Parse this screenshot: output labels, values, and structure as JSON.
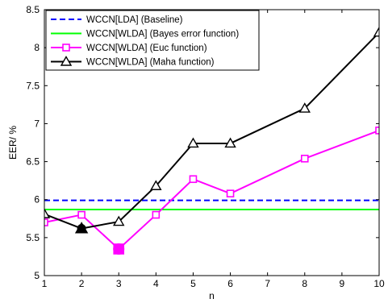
{
  "chart_data": {
    "type": "line",
    "title": "",
    "xlabel": "n",
    "ylabel": "EER/ %",
    "xlim": [
      1,
      10
    ],
    "ylim": [
      5,
      8.5
    ],
    "xticks": [
      "1",
      "2",
      "3",
      "4",
      "5",
      "6",
      "7",
      "8",
      "9",
      "10"
    ],
    "yticks": [
      "5",
      "5.5",
      "6",
      "6.5",
      "7",
      "7.5",
      "8",
      "8.5"
    ],
    "grid": false,
    "legend_position": "top-left",
    "series": [
      {
        "name": "WCCN[LDA] (Baseline)",
        "color": "#0000ff",
        "style": "dashed",
        "marker": "none",
        "x": [
          1,
          10
        ],
        "y": [
          5.99,
          5.99
        ]
      },
      {
        "name": "WCCN[WLDA] (Bayes error function)",
        "color": "#00ff00",
        "style": "solid",
        "marker": "none",
        "x": [
          1,
          10
        ],
        "y": [
          5.87,
          5.87
        ]
      },
      {
        "name": "WCCN[WLDA] (Euc function)",
        "color": "#ff00ff",
        "style": "solid",
        "marker": "square",
        "x": [
          1,
          2,
          3,
          4,
          5,
          6,
          8,
          10
        ],
        "y": [
          5.7,
          5.8,
          5.35,
          5.8,
          6.27,
          6.08,
          6.54,
          6.91
        ],
        "highlight_index": 2
      },
      {
        "name": "WCCN[WLDA] (Maha function)",
        "color": "#000000",
        "style": "solid",
        "marker": "triangle",
        "x": [
          1,
          2,
          3,
          4,
          5,
          6,
          8,
          10
        ],
        "y": [
          5.81,
          5.62,
          5.71,
          6.18,
          6.74,
          6.74,
          7.2,
          8.2
        ],
        "highlight_index": 1
      }
    ]
  }
}
